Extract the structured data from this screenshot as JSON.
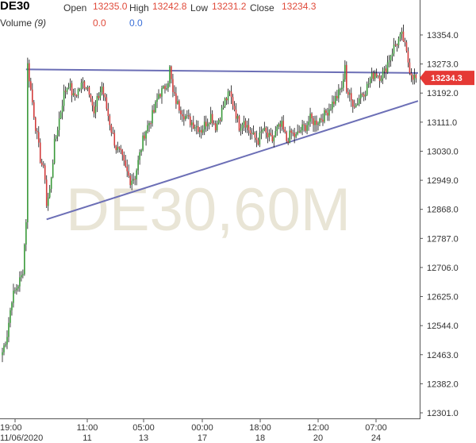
{
  "header": {
    "symbol": "DE30",
    "open_label": "Open",
    "open_value": "13235.0",
    "high_label": "High",
    "high_value": "13242.8",
    "low_label": "Low",
    "low_value": "13231.2",
    "close_label": "Close",
    "close_value": "13234.3",
    "volume_label": "Volume",
    "volume_param": "(9)",
    "volume_value_1": "0.0",
    "volume_value_2": "0.0"
  },
  "watermark": "DE30,60M",
  "last_price_tag": "13234.3",
  "colors": {
    "up": "#3a9a3a",
    "down": "#d23c3c",
    "wick": "#111111",
    "trendline": "#6c6fb6",
    "price_tag": "#e53935",
    "watermark": "#e9e5d6"
  },
  "chart_data": {
    "type": "candlestick",
    "title": "DE30,60M",
    "y_axis": {
      "ticks": [
        13354.0,
        13273.0,
        13192.0,
        13111.0,
        13030.0,
        12949.0,
        12868.0,
        12787.0,
        12706.0,
        12625.0,
        12544.0,
        12463.0,
        12382.0,
        12301.0
      ],
      "tick_labels": [
        "13354.0",
        "13273.0",
        "13192.0",
        "13111.0",
        "13030.0",
        "12949.0",
        "12868.0",
        "12787.0",
        "12706.0",
        "12625.0",
        "12544.0",
        "12463.0",
        "12382.0",
        "12301.0"
      ],
      "range": [
        12290,
        13390
      ]
    },
    "x_axis": {
      "ticks": [
        {
          "time": "19:00",
          "date": "11/06/2020"
        },
        {
          "time": "11:00",
          "date": "11"
        },
        {
          "time": "05:00",
          "date": "13"
        },
        {
          "time": "00:00",
          "date": "17"
        },
        {
          "time": "18:00",
          "date": "18"
        },
        {
          "time": "12:00",
          "date": "20"
        },
        {
          "time": "07:00",
          "date": "24"
        }
      ]
    },
    "series_anchors": [
      [
        0,
        12470
      ],
      [
        3,
        12520
      ],
      [
        6,
        12620
      ],
      [
        9,
        12650
      ],
      [
        12,
        12680
      ],
      [
        13,
        12700
      ],
      [
        15,
        12840
      ],
      [
        16,
        13270
      ],
      [
        18,
        13200
      ],
      [
        21,
        13100
      ],
      [
        24,
        13010
      ],
      [
        27,
        12960
      ],
      [
        28,
        12880
      ],
      [
        30,
        12920
      ],
      [
        33,
        13050
      ],
      [
        36,
        13120
      ],
      [
        39,
        13190
      ],
      [
        42,
        13220
      ],
      [
        45,
        13180
      ],
      [
        48,
        13200
      ],
      [
        51,
        13220
      ],
      [
        54,
        13210
      ],
      [
        56,
        13190
      ],
      [
        58,
        13130
      ],
      [
        60,
        13170
      ],
      [
        63,
        13210
      ],
      [
        66,
        13150
      ],
      [
        69,
        13090
      ],
      [
        72,
        13040
      ],
      [
        75,
        13020
      ],
      [
        78,
        12980
      ],
      [
        81,
        12950
      ],
      [
        84,
        12960
      ],
      [
        87,
        13020
      ],
      [
        90,
        13080
      ],
      [
        93,
        13110
      ],
      [
        96,
        13140
      ],
      [
        99,
        13190
      ],
      [
        102,
        13200
      ],
      [
        105,
        13230
      ],
      [
        106,
        13260
      ],
      [
        108,
        13190
      ],
      [
        111,
        13160
      ],
      [
        114,
        13140
      ],
      [
        117,
        13120
      ],
      [
        120,
        13110
      ],
      [
        123,
        13100
      ],
      [
        126,
        13090
      ],
      [
        129,
        13110
      ],
      [
        132,
        13130
      ],
      [
        135,
        13100
      ],
      [
        138,
        13130
      ],
      [
        141,
        13170
      ],
      [
        144,
        13190
      ],
      [
        147,
        13150
      ],
      [
        150,
        13100
      ],
      [
        153,
        13120
      ],
      [
        156,
        13090
      ],
      [
        159,
        13070
      ],
      [
        162,
        13060
      ],
      [
        165,
        13090
      ],
      [
        168,
        13070
      ],
      [
        171,
        13060
      ],
      [
        174,
        13090
      ],
      [
        177,
        13100
      ],
      [
        180,
        13060
      ],
      [
        183,
        13080
      ],
      [
        186,
        13070
      ],
      [
        189,
        13090
      ],
      [
        192,
        13100
      ],
      [
        195,
        13120
      ],
      [
        198,
        13110
      ],
      [
        201,
        13120
      ],
      [
        204,
        13130
      ],
      [
        207,
        13150
      ],
      [
        210,
        13170
      ],
      [
        213,
        13190
      ],
      [
        216,
        13220
      ],
      [
        217,
        13280
      ],
      [
        218,
        13200
      ],
      [
        221,
        13170
      ],
      [
        224,
        13160
      ],
      [
        227,
        13190
      ],
      [
        230,
        13200
      ],
      [
        233,
        13230
      ],
      [
        236,
        13250
      ],
      [
        239,
        13240
      ],
      [
        242,
        13250
      ],
      [
        245,
        13290
      ],
      [
        248,
        13320
      ],
      [
        251,
        13340
      ],
      [
        253,
        13350
      ],
      [
        254,
        13340
      ],
      [
        256,
        13300
      ],
      [
        258,
        13260
      ],
      [
        260,
        13240
      ],
      [
        262,
        13234
      ]
    ],
    "trendlines": [
      {
        "from": {
          "bar": 15,
          "price": 13258
        },
        "to": {
          "bar": 264,
          "price": 13248
        }
      },
      {
        "from": {
          "bar": 28,
          "price": 12840
        },
        "to": {
          "bar": 264,
          "price": 13170
        }
      }
    ],
    "last_close": 13234.3
  }
}
